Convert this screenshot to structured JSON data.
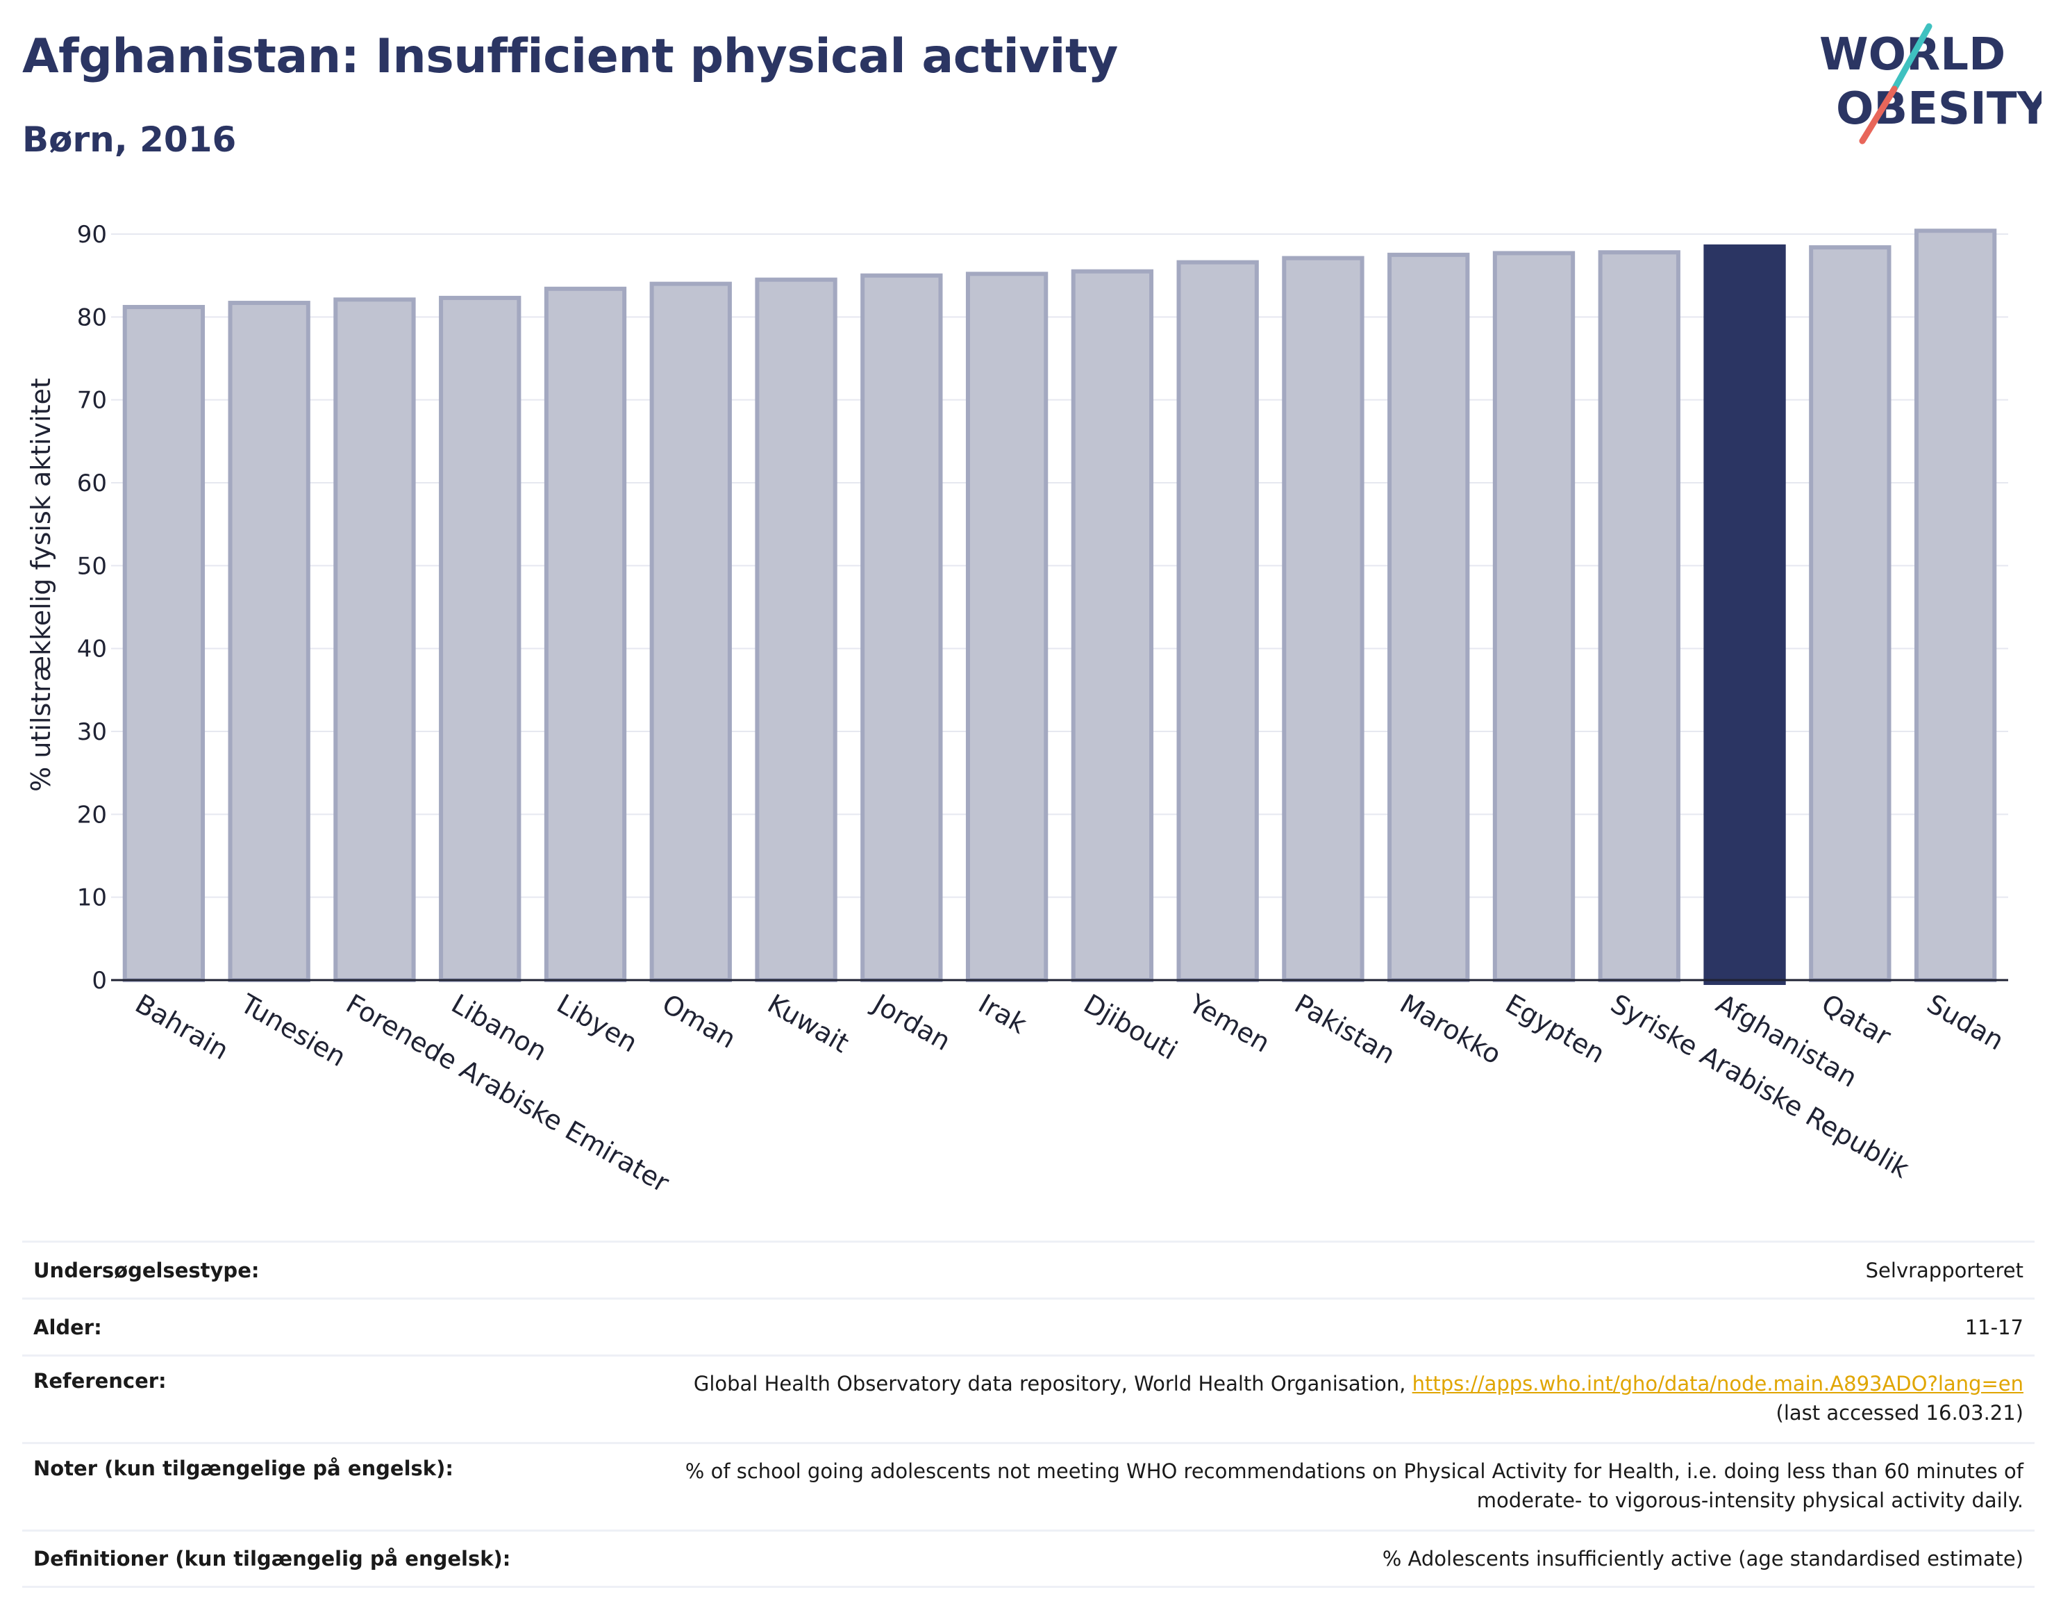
{
  "header": {
    "title": "Afghanistan: Insufficient physical activity",
    "subtitle": "Børn, 2016"
  },
  "logo": {
    "line1": "WORLD",
    "line2": "OBESITY",
    "accent_teal": "#3fc1c0",
    "accent_red": "#e8665a",
    "text_color": "#2b3563"
  },
  "chart_data": {
    "type": "bar",
    "ylabel": "% utilstrækkelig fysisk aktivitet",
    "xlabel": "",
    "ylim": [
      0,
      90
    ],
    "yticks": [
      0,
      10,
      20,
      30,
      40,
      50,
      60,
      70,
      80,
      90
    ],
    "grid": true,
    "categories": [
      "Bahrain",
      "Tunesien",
      "Forenede Arabiske Emirater",
      "Libanon",
      "Libyen",
      "Oman",
      "Kuwait",
      "Jordan",
      "Irak",
      "Djibouti",
      "Yemen",
      "Pakistan",
      "Marokko",
      "Egypten",
      "Syriske Arabiske Republik",
      "Afghanistan",
      "Qatar",
      "Sudan"
    ],
    "values": [
      81.2,
      81.7,
      82.1,
      82.3,
      83.4,
      84.0,
      84.5,
      85.0,
      85.2,
      85.5,
      86.6,
      87.1,
      87.5,
      87.7,
      87.8,
      88.5,
      88.4,
      90.4
    ],
    "highlight": "Afghanistan",
    "colors": {
      "bar": "#c0c3d1",
      "bar_border": "#a3a8c0",
      "highlight": "#2b3563"
    }
  },
  "info_table": [
    {
      "label": "Undersøgelsestype:",
      "value": "Selvrapporteret"
    },
    {
      "label": "Alder:",
      "value": "11-17"
    },
    {
      "label": "Referencer:",
      "value": "Global Health Observatory data repository, World Health Organisation, ",
      "link": "https://apps.who.int/gho/data/node.main.A893ADO?lang=en",
      "value2": "(last accessed 16.03.21)"
    },
    {
      "label": "Noter (kun tilgængelige på engelsk):",
      "value": "% of school going adolescents not meeting WHO recommendations on Physical Activity for Health, i.e. doing less than 60 minutes of",
      "value2": "moderate- to vigorous-intensity physical activity daily."
    },
    {
      "label": "Definitioner (kun tilgængelig på engelsk):",
      "value": "% Adolescents insufficiently active (age standardised estimate)"
    }
  ]
}
